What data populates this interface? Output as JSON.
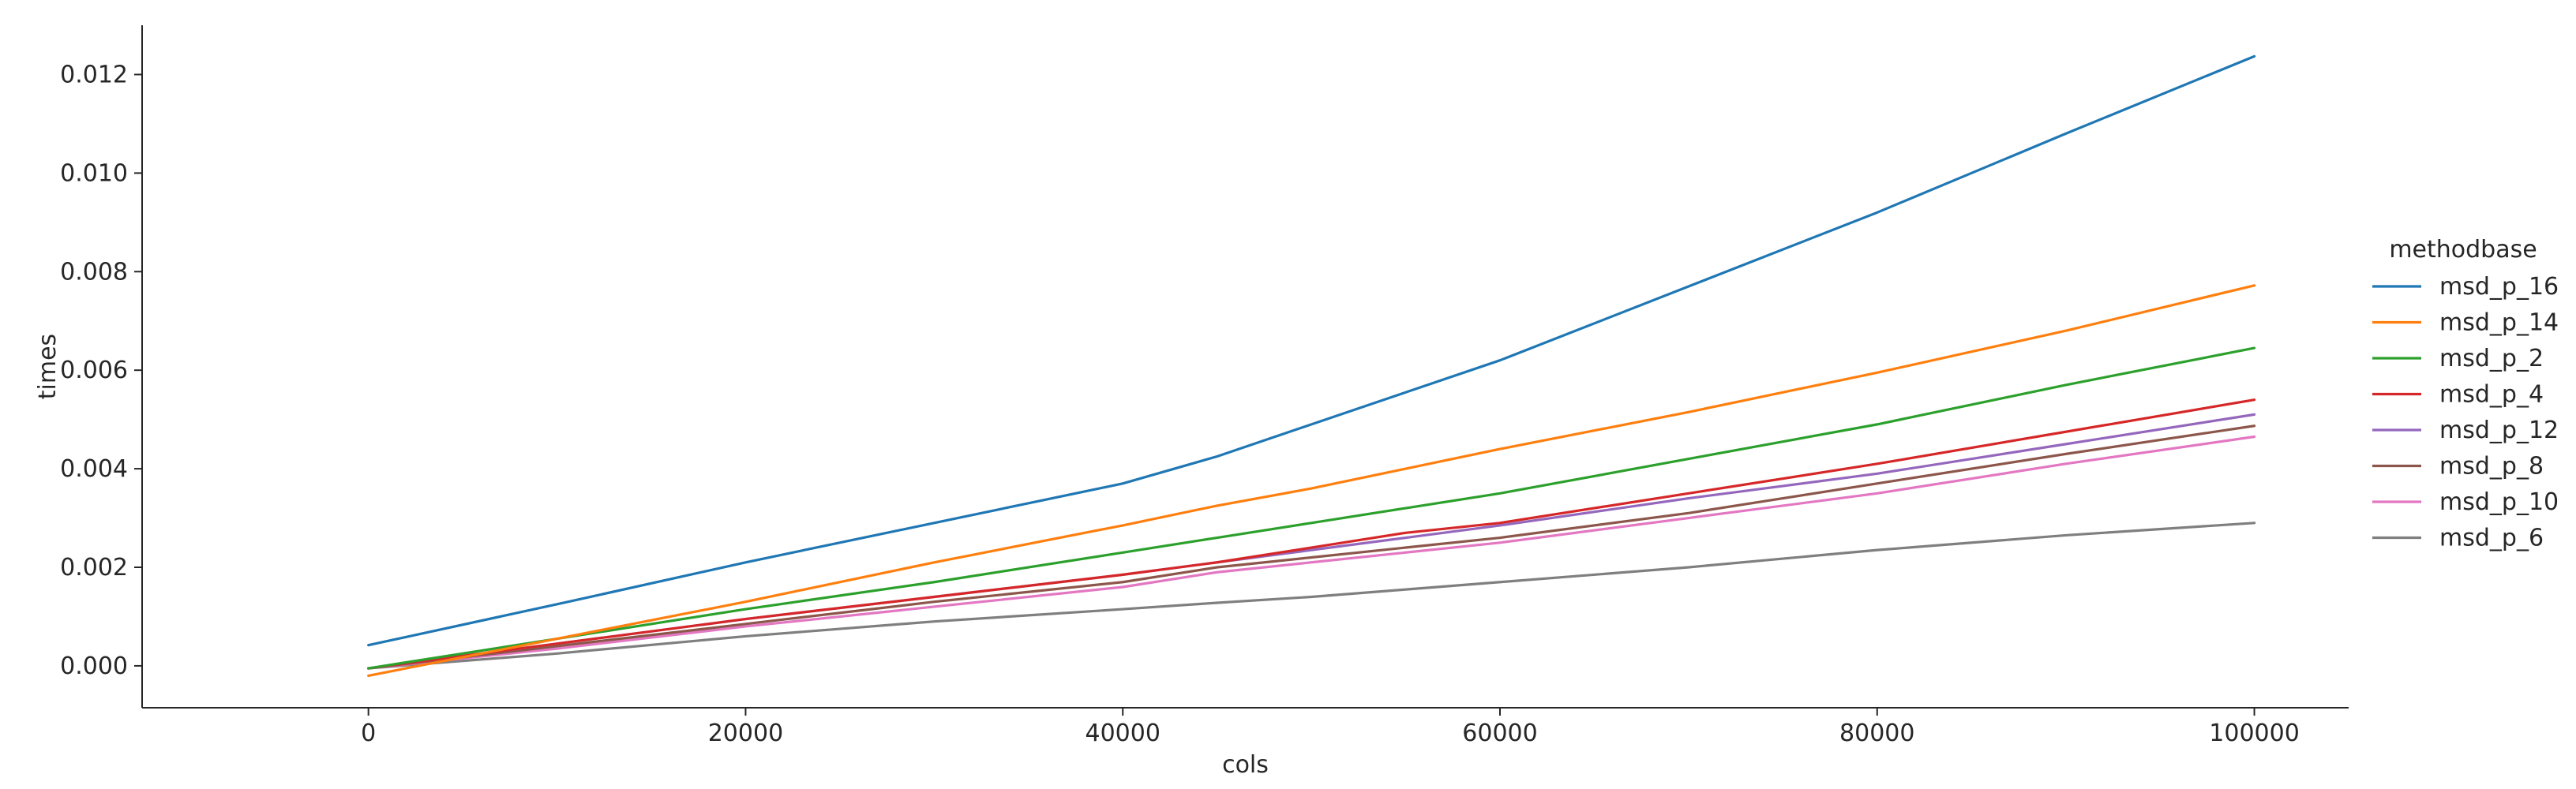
{
  "chart_data": {
    "type": "line",
    "title": "",
    "xlabel": "cols",
    "ylabel": "times",
    "xlim": [
      -12000,
      105000
    ],
    "ylim": [
      -0.00085,
      0.013
    ],
    "x_ticks": [
      0,
      20000,
      40000,
      60000,
      80000,
      100000
    ],
    "x_tick_labels": [
      "0",
      "20000",
      "40000",
      "60000",
      "80000",
      "100000"
    ],
    "y_ticks": [
      0.0,
      0.002,
      0.004,
      0.006,
      0.008,
      0.01,
      0.012
    ],
    "y_tick_labels": [
      "0.000",
      "0.002",
      "0.004",
      "0.006",
      "0.008",
      "0.010",
      "0.012"
    ],
    "grid": false,
    "legend": {
      "title": "methodbase",
      "placement": "right"
    },
    "x": [
      0,
      10000,
      20000,
      30000,
      40000,
      45000,
      50000,
      55000,
      60000,
      70000,
      80000,
      90000,
      100000
    ],
    "series": [
      {
        "name": "msd_p_16",
        "color": "#1f77b4",
        "values": [
          0.00042,
          0.00125,
          0.0021,
          0.0029,
          0.0037,
          0.00425,
          0.0049,
          0.00555,
          0.0062,
          0.0077,
          0.0092,
          0.0108,
          0.01237
        ]
      },
      {
        "name": "msd_p_14",
        "color": "#ff7f0e",
        "values": [
          -0.0002,
          0.00055,
          0.0013,
          0.0021,
          0.00285,
          0.00325,
          0.0036,
          0.004,
          0.0044,
          0.00515,
          0.00595,
          0.0068,
          0.00772
        ]
      },
      {
        "name": "msd_p_2",
        "color": "#2ca02c",
        "values": [
          -5e-05,
          0.00055,
          0.00115,
          0.0017,
          0.0023,
          0.0026,
          0.0029,
          0.0032,
          0.0035,
          0.0042,
          0.0049,
          0.0057,
          0.00645
        ]
      },
      {
        "name": "msd_p_4",
        "color": "#d62728",
        "values": [
          -5e-05,
          0.00045,
          0.00095,
          0.0014,
          0.00185,
          0.0021,
          0.0024,
          0.0027,
          0.0029,
          0.0035,
          0.0041,
          0.00475,
          0.0054
        ]
      },
      {
        "name": "msd_p_12",
        "color": "#9467bd",
        "values": [
          -5e-05,
          0.00045,
          0.00095,
          0.0014,
          0.00185,
          0.0021,
          0.00235,
          0.0026,
          0.00285,
          0.0034,
          0.0039,
          0.0045,
          0.0051
        ]
      },
      {
        "name": "msd_p_8",
        "color": "#8c564b",
        "values": [
          -5e-05,
          0.0004,
          0.00085,
          0.0013,
          0.0017,
          0.002,
          0.0022,
          0.0024,
          0.0026,
          0.0031,
          0.0037,
          0.0043,
          0.00487
        ]
      },
      {
        "name": "msd_p_10",
        "color": "#e377c2",
        "values": [
          -5e-05,
          0.00035,
          0.0008,
          0.0012,
          0.0016,
          0.0019,
          0.0021,
          0.0023,
          0.0025,
          0.003,
          0.0035,
          0.0041,
          0.00465
        ]
      },
      {
        "name": "msd_p_6",
        "color": "#7f7f7f",
        "values": [
          -5e-05,
          0.00025,
          0.0006,
          0.0009,
          0.00115,
          0.00128,
          0.0014,
          0.00155,
          0.0017,
          0.002,
          0.00235,
          0.00265,
          0.0029
        ]
      }
    ]
  }
}
